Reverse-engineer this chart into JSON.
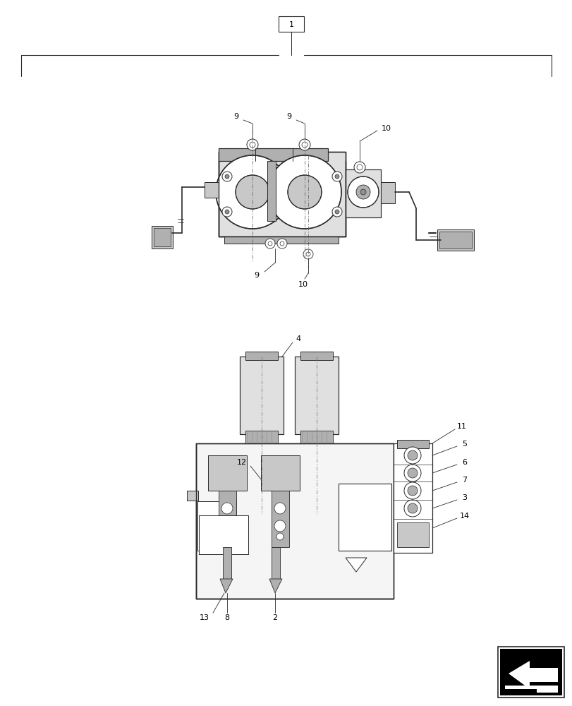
{
  "bg_color": "#ffffff",
  "fig_width": 8.12,
  "fig_height": 10.0,
  "dpi": 100,
  "lc": "#2a2a2a",
  "gray1": "#c8c8c8",
  "gray2": "#b0b0b0",
  "gray3": "#909090",
  "gray_light": "#e0e0e0"
}
